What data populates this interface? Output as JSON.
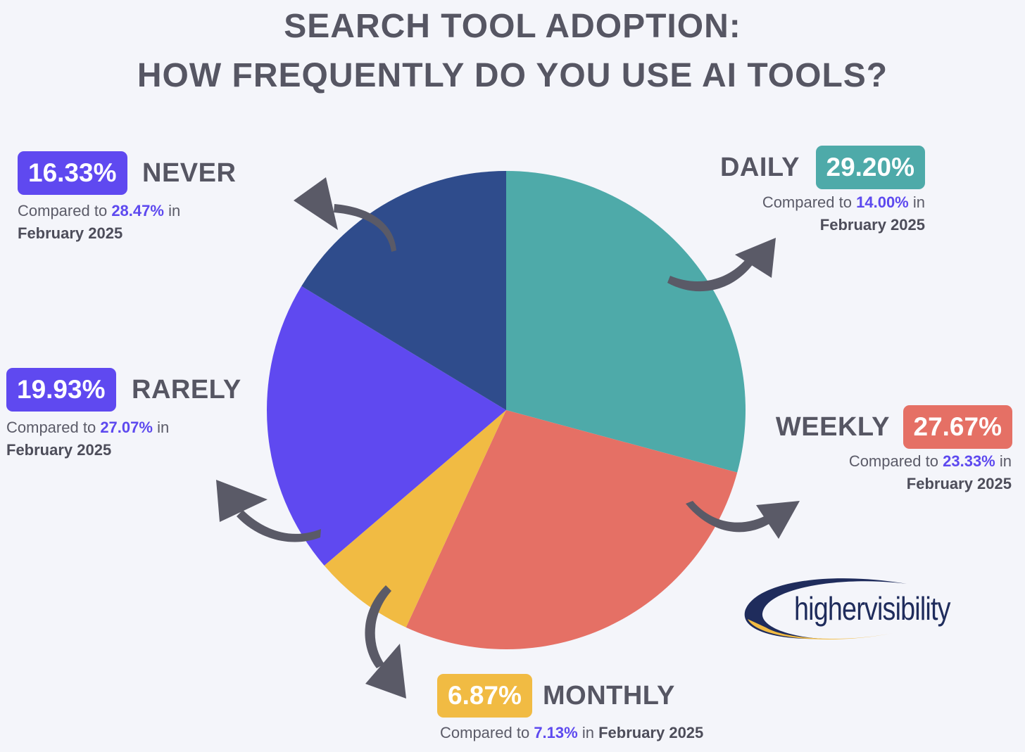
{
  "title_line1": "SEARCH TOOL ADOPTION:",
  "title_line2": "HOW FREQUENTLY DO YOU USE AI TOOLS?",
  "chart_data": {
    "type": "pie",
    "start_angle_deg": 0,
    "direction": "clockwise",
    "slices": [
      {
        "label": "DAILY",
        "value": 29.2,
        "display": "29.20%",
        "color": "#4eaaa9",
        "prior_display": "14.00%"
      },
      {
        "label": "WEEKLY",
        "value": 27.67,
        "display": "27.67%",
        "color": "#e57065",
        "prior_display": "23.33%"
      },
      {
        "label": "MONTHLY",
        "value": 6.87,
        "display": "6.87%",
        "color": "#f1bb43",
        "prior_display": "7.13%"
      },
      {
        "label": "RARELY",
        "value": 19.93,
        "display": "19.93%",
        "color": "#5f49f0",
        "prior_display": "27.07%"
      },
      {
        "label": "NEVER",
        "value": 16.33,
        "display": "16.33%",
        "color": "#2f4c8c",
        "prior_display": "28.47%"
      }
    ]
  },
  "compare_prefix": "Compared to",
  "compare_in": "in",
  "compare_month": "February 2025",
  "logo": {
    "text": "highervisibility",
    "colors": [
      "#1f2c5c",
      "#f1bb43"
    ]
  },
  "arrow_color": "#5a5a67"
}
